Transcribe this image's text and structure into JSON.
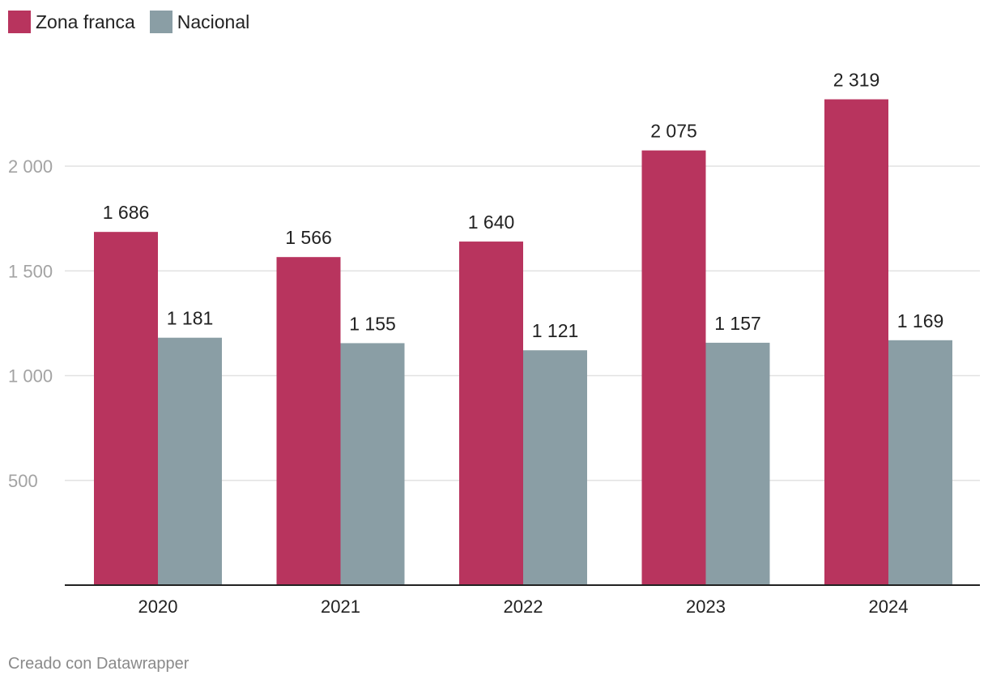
{
  "chart_data": {
    "type": "bar",
    "categories": [
      "2020",
      "2021",
      "2022",
      "2023",
      "2024"
    ],
    "series": [
      {
        "name": "Zona franca",
        "color": "#b8345e",
        "values": [
          1686,
          1566,
          1640,
          2075,
          2319
        ],
        "labels": [
          "1 686",
          "1 566",
          "1 640",
          "2 075",
          "2 319"
        ]
      },
      {
        "name": "Nacional",
        "color": "#8a9ea5",
        "values": [
          1181,
          1155,
          1121,
          1157,
          1169
        ],
        "labels": [
          "1 181",
          "1 155",
          "1 121",
          "1 157",
          "1 169"
        ]
      }
    ],
    "yticks": [
      500,
      1000,
      1500,
      2000
    ],
    "ytick_labels": [
      "500",
      "1 000",
      "1 500",
      "2 000"
    ],
    "ylim": [
      0,
      2450
    ],
    "grid": true,
    "legend_position": "top-left",
    "title": "",
    "xlabel": "",
    "ylabel": ""
  },
  "footer": {
    "credit": "Creado con Datawrapper"
  }
}
